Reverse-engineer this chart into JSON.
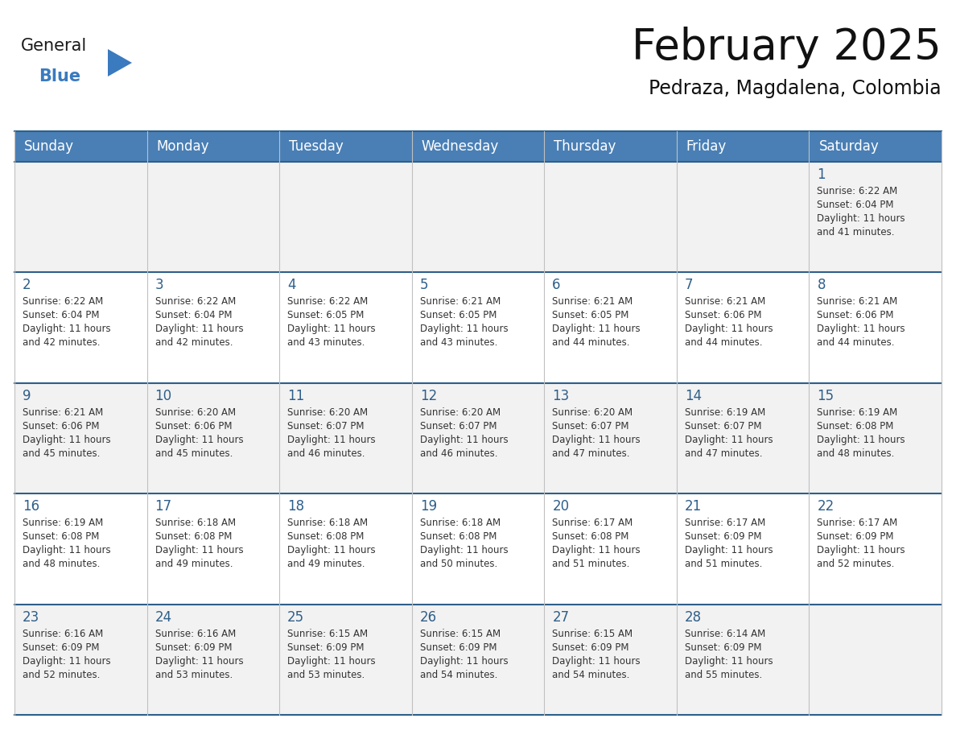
{
  "title": "February 2025",
  "subtitle": "Pedraza, Magdalena, Colombia",
  "header_bg": "#4a7fb5",
  "header_text_color": "#ffffff",
  "cell_bg_white": "#ffffff",
  "cell_bg_gray": "#f2f2f2",
  "border_color_dark": "#2e5f8a",
  "border_color_light": "#c0c0c0",
  "day_number_color": "#2e5f8a",
  "cell_text_color": "#333333",
  "days_of_week": [
    "Sunday",
    "Monday",
    "Tuesday",
    "Wednesday",
    "Thursday",
    "Friday",
    "Saturday"
  ],
  "weeks": [
    [
      {
        "day": null,
        "info": null
      },
      {
        "day": null,
        "info": null
      },
      {
        "day": null,
        "info": null
      },
      {
        "day": null,
        "info": null
      },
      {
        "day": null,
        "info": null
      },
      {
        "day": null,
        "info": null
      },
      {
        "day": 1,
        "info": "Sunrise: 6:22 AM\nSunset: 6:04 PM\nDaylight: 11 hours\nand 41 minutes."
      }
    ],
    [
      {
        "day": 2,
        "info": "Sunrise: 6:22 AM\nSunset: 6:04 PM\nDaylight: 11 hours\nand 42 minutes."
      },
      {
        "day": 3,
        "info": "Sunrise: 6:22 AM\nSunset: 6:04 PM\nDaylight: 11 hours\nand 42 minutes."
      },
      {
        "day": 4,
        "info": "Sunrise: 6:22 AM\nSunset: 6:05 PM\nDaylight: 11 hours\nand 43 minutes."
      },
      {
        "day": 5,
        "info": "Sunrise: 6:21 AM\nSunset: 6:05 PM\nDaylight: 11 hours\nand 43 minutes."
      },
      {
        "day": 6,
        "info": "Sunrise: 6:21 AM\nSunset: 6:05 PM\nDaylight: 11 hours\nand 44 minutes."
      },
      {
        "day": 7,
        "info": "Sunrise: 6:21 AM\nSunset: 6:06 PM\nDaylight: 11 hours\nand 44 minutes."
      },
      {
        "day": 8,
        "info": "Sunrise: 6:21 AM\nSunset: 6:06 PM\nDaylight: 11 hours\nand 44 minutes."
      }
    ],
    [
      {
        "day": 9,
        "info": "Sunrise: 6:21 AM\nSunset: 6:06 PM\nDaylight: 11 hours\nand 45 minutes."
      },
      {
        "day": 10,
        "info": "Sunrise: 6:20 AM\nSunset: 6:06 PM\nDaylight: 11 hours\nand 45 minutes."
      },
      {
        "day": 11,
        "info": "Sunrise: 6:20 AM\nSunset: 6:07 PM\nDaylight: 11 hours\nand 46 minutes."
      },
      {
        "day": 12,
        "info": "Sunrise: 6:20 AM\nSunset: 6:07 PM\nDaylight: 11 hours\nand 46 minutes."
      },
      {
        "day": 13,
        "info": "Sunrise: 6:20 AM\nSunset: 6:07 PM\nDaylight: 11 hours\nand 47 minutes."
      },
      {
        "day": 14,
        "info": "Sunrise: 6:19 AM\nSunset: 6:07 PM\nDaylight: 11 hours\nand 47 minutes."
      },
      {
        "day": 15,
        "info": "Sunrise: 6:19 AM\nSunset: 6:08 PM\nDaylight: 11 hours\nand 48 minutes."
      }
    ],
    [
      {
        "day": 16,
        "info": "Sunrise: 6:19 AM\nSunset: 6:08 PM\nDaylight: 11 hours\nand 48 minutes."
      },
      {
        "day": 17,
        "info": "Sunrise: 6:18 AM\nSunset: 6:08 PM\nDaylight: 11 hours\nand 49 minutes."
      },
      {
        "day": 18,
        "info": "Sunrise: 6:18 AM\nSunset: 6:08 PM\nDaylight: 11 hours\nand 49 minutes."
      },
      {
        "day": 19,
        "info": "Sunrise: 6:18 AM\nSunset: 6:08 PM\nDaylight: 11 hours\nand 50 minutes."
      },
      {
        "day": 20,
        "info": "Sunrise: 6:17 AM\nSunset: 6:08 PM\nDaylight: 11 hours\nand 51 minutes."
      },
      {
        "day": 21,
        "info": "Sunrise: 6:17 AM\nSunset: 6:09 PM\nDaylight: 11 hours\nand 51 minutes."
      },
      {
        "day": 22,
        "info": "Sunrise: 6:17 AM\nSunset: 6:09 PM\nDaylight: 11 hours\nand 52 minutes."
      }
    ],
    [
      {
        "day": 23,
        "info": "Sunrise: 6:16 AM\nSunset: 6:09 PM\nDaylight: 11 hours\nand 52 minutes."
      },
      {
        "day": 24,
        "info": "Sunrise: 6:16 AM\nSunset: 6:09 PM\nDaylight: 11 hours\nand 53 minutes."
      },
      {
        "day": 25,
        "info": "Sunrise: 6:15 AM\nSunset: 6:09 PM\nDaylight: 11 hours\nand 53 minutes."
      },
      {
        "day": 26,
        "info": "Sunrise: 6:15 AM\nSunset: 6:09 PM\nDaylight: 11 hours\nand 54 minutes."
      },
      {
        "day": 27,
        "info": "Sunrise: 6:15 AM\nSunset: 6:09 PM\nDaylight: 11 hours\nand 54 minutes."
      },
      {
        "day": 28,
        "info": "Sunrise: 6:14 AM\nSunset: 6:09 PM\nDaylight: 11 hours\nand 55 minutes."
      },
      {
        "day": null,
        "info": null
      }
    ]
  ],
  "logo_general_color": "#1a1a1a",
  "logo_blue_color": "#3a7abf",
  "title_fontsize": 38,
  "subtitle_fontsize": 17,
  "header_fontsize": 12,
  "day_number_fontsize": 12,
  "cell_text_fontsize": 8.5
}
